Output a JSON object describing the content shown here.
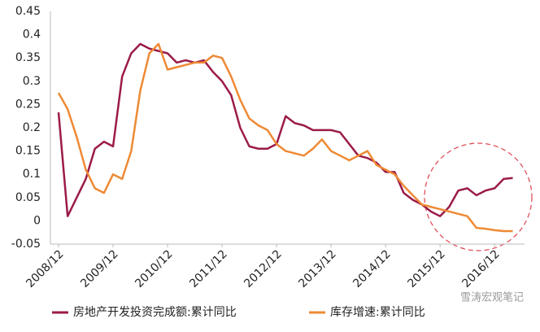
{
  "chart_data": {
    "type": "line",
    "categories": [
      "2008/12",
      null,
      null,
      null,
      null,
      null,
      "2009/12",
      null,
      null,
      null,
      null,
      null,
      "2010/12",
      null,
      null,
      null,
      null,
      null,
      "2011/12",
      null,
      null,
      null,
      null,
      null,
      "2012/12",
      null,
      null,
      null,
      null,
      null,
      "2013/12",
      null,
      null,
      null,
      null,
      null,
      "2014/12",
      null,
      null,
      null,
      null,
      null,
      "2015/12",
      null,
      null,
      null,
      null,
      null,
      "2016/12",
      null,
      null
    ],
    "series": [
      {
        "name": "房地产开发投资完成额:累计同比",
        "color": "#9b1b4a",
        "values": [
          0.233,
          0.01,
          0.05,
          0.09,
          0.155,
          0.17,
          0.16,
          0.31,
          0.36,
          0.38,
          0.37,
          0.365,
          0.36,
          0.34,
          0.345,
          0.34,
          0.345,
          0.32,
          0.3,
          0.27,
          0.2,
          0.16,
          0.155,
          0.155,
          0.165,
          0.225,
          0.21,
          0.205,
          0.195,
          0.195,
          0.195,
          0.19,
          0.165,
          0.14,
          0.135,
          0.125,
          0.105,
          0.105,
          0.06,
          0.045,
          0.035,
          0.02,
          0.01,
          0.03,
          0.065,
          0.07,
          0.055,
          0.065,
          0.07,
          0.09,
          0.092
        ]
      },
      {
        "name": "库存增速:累计同比",
        "color": "#ee8a35",
        "values": [
          0.275,
          0.24,
          0.18,
          0.11,
          0.07,
          0.06,
          0.1,
          0.09,
          0.15,
          0.28,
          0.36,
          0.38,
          0.325,
          0.33,
          0.335,
          0.34,
          0.34,
          0.355,
          0.35,
          0.31,
          0.26,
          0.22,
          0.205,
          0.195,
          0.165,
          0.15,
          0.145,
          0.14,
          0.155,
          0.175,
          0.15,
          0.14,
          0.13,
          0.14,
          0.15,
          0.12,
          0.11,
          0.1,
          0.075,
          0.055,
          0.035,
          0.03,
          0.025,
          0.02,
          0.015,
          0.01,
          -0.015,
          -0.017,
          -0.02,
          -0.022,
          -0.022
        ]
      }
    ],
    "ylim": [
      -0.05,
      0.45
    ],
    "yticks": [
      -0.05,
      0,
      0.05,
      0.1,
      0.15,
      0.2,
      0.25,
      0.3,
      0.35,
      0.4,
      0.45
    ],
    "watermark": "雪涛宏观笔记"
  }
}
